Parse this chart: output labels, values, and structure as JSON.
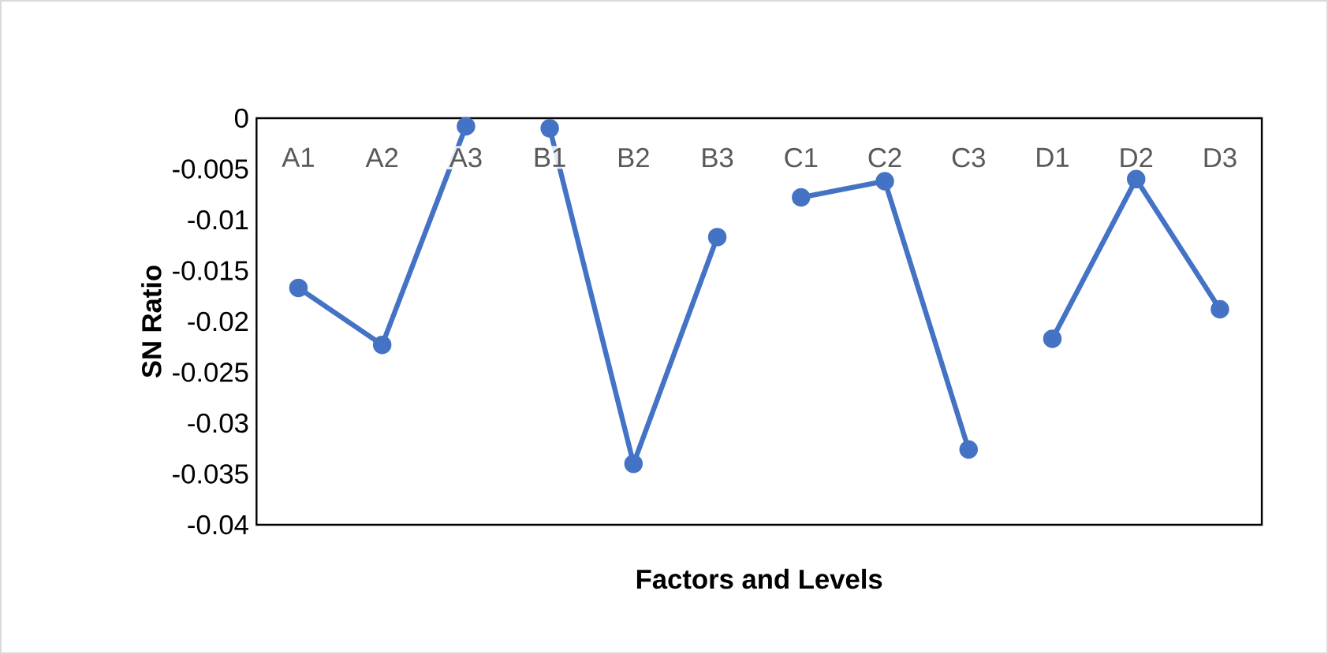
{
  "chart_data": {
    "type": "line",
    "xlabel": "Factors and Levels",
    "ylabel": "SN Ratio",
    "categories": [
      "A1",
      "A2",
      "A3",
      "B1",
      "B2",
      "B3",
      "C1",
      "C2",
      "C3",
      "D1",
      "D2",
      "D3"
    ],
    "series": [
      {
        "color": "#4472c4",
        "values": [
          -0.0167,
          -0.0223,
          -0.0008,
          null,
          null,
          null,
          null,
          null,
          null,
          null,
          null,
          null
        ]
      },
      {
        "color": "#4472c4",
        "values": [
          null,
          null,
          null,
          -0.001,
          -0.034,
          -0.0117,
          null,
          null,
          null,
          null,
          null,
          null
        ]
      },
      {
        "color": "#4472c4",
        "values": [
          null,
          null,
          null,
          null,
          null,
          null,
          -0.0078,
          -0.0062,
          -0.0326,
          null,
          null,
          null
        ]
      },
      {
        "color": "#4472c4",
        "values": [
          null,
          null,
          null,
          null,
          null,
          null,
          null,
          null,
          null,
          -0.0217,
          -0.006,
          -0.0188
        ]
      }
    ],
    "ylim": [
      -0.04,
      0
    ],
    "yticks": [
      0,
      -0.005,
      -0.01,
      -0.015,
      -0.02,
      -0.025,
      -0.03,
      -0.035,
      -0.04
    ],
    "marker": "circle",
    "line_style": "solid"
  }
}
